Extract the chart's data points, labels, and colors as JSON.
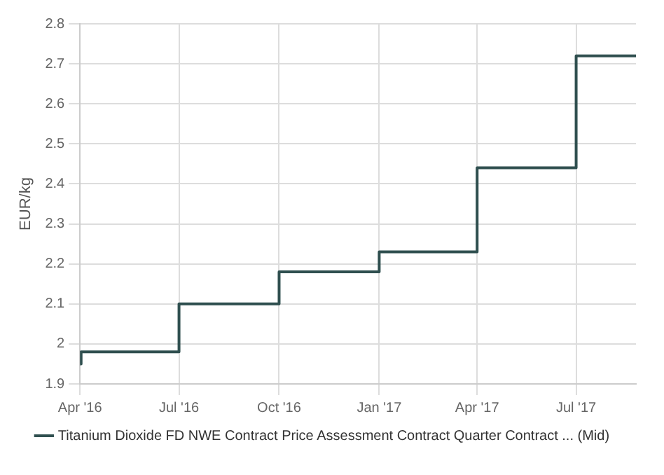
{
  "chart_data": {
    "type": "step",
    "ylabel": "EUR/kg",
    "x": [
      "2016-04-01",
      "2016-04-02",
      "2016-07-01",
      "2016-10-01",
      "2017-01-01",
      "2017-04-01",
      "2017-07-01",
      "2017-08-25"
    ],
    "series": [
      {
        "name": "Titanium Dioxide FD NWE Contract Price Assessment Contract Quarter Contract ... (Mid)",
        "color": "#2f4f4f",
        "values": [
          1.95,
          1.98,
          2.1,
          2.18,
          2.23,
          2.44,
          2.72,
          2.72
        ]
      }
    ],
    "xlim": [
      "2016-04-01",
      "2017-08-25"
    ],
    "xticks": [
      {
        "value": "2016-04-01",
        "label": "Apr '16"
      },
      {
        "value": "2016-07-01",
        "label": "Jul '16"
      },
      {
        "value": "2016-10-01",
        "label": "Oct '16"
      },
      {
        "value": "2017-01-01",
        "label": "Jan '17"
      },
      {
        "value": "2017-04-01",
        "label": "Apr '17"
      },
      {
        "value": "2017-07-01",
        "label": "Jul '17"
      }
    ],
    "ylim": [
      1.9,
      2.8
    ],
    "yticks": [
      1.9,
      2,
      2.1,
      2.2,
      2.3,
      2.4,
      2.5,
      2.6,
      2.7,
      2.8
    ],
    "grid": true,
    "legend": "bottom",
    "marker": "none",
    "line_style": "solid"
  }
}
